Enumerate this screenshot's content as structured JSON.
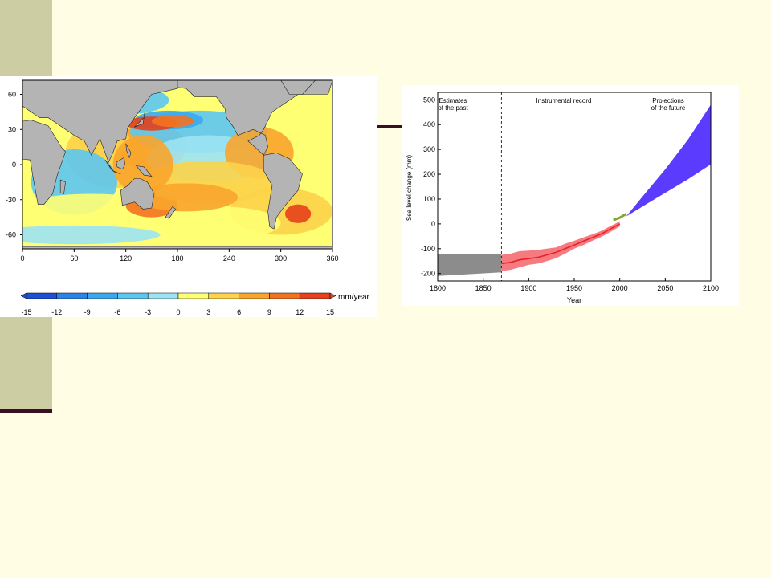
{
  "colors": {
    "background": "#fffde3",
    "deco_bar": "#cdcda4",
    "deco_line": "#3a0f24",
    "land": "#b4b4b4",
    "past_band": "#8c8c8c",
    "instrumental": "#e8202a",
    "instrumental_band": "#f4646a",
    "satellite": "#7fa832",
    "projection": "#5b3cff"
  },
  "chart_data": [
    {
      "type": "heatmap",
      "subtype": "map",
      "x_ticks": [
        "0",
        "60",
        "120",
        "180",
        "240",
        "300",
        "360"
      ],
      "y_ticks": [
        "60",
        "30",
        "0",
        "-30",
        "-60"
      ],
      "xlim": [
        0,
        360
      ],
      "ylim": [
        -72,
        72
      ],
      "colorbar": {
        "unit": "mm/year",
        "ticks": [
          "-15",
          "-12",
          "-9",
          "-6",
          "-3",
          "0",
          "3",
          "6",
          "9",
          "12",
          "15"
        ],
        "colors": [
          "#1f4fd6",
          "#2b82e8",
          "#3aa8ef",
          "#5cc6f2",
          "#9ce3f4",
          "#ffff73",
          "#fcd34a",
          "#f8a52c",
          "#f3731f",
          "#e6411c"
        ]
      }
    },
    {
      "type": "area",
      "xlabel": "Year",
      "ylabel": "Sea level change (mm)",
      "xlim": [
        1800,
        2100
      ],
      "ylim": [
        -230,
        530
      ],
      "x_ticks": [
        1800,
        1850,
        1900,
        1950,
        2000,
        2050,
        2100
      ],
      "y_ticks": [
        -200,
        -100,
        0,
        100,
        200,
        300,
        400,
        500
      ],
      "grid": false,
      "periods": [
        {
          "label_line1": "Estimates",
          "label_line2": "of the past"
        },
        {
          "label_line1": "Instrumental record",
          "label_line2": ""
        },
        {
          "label_line1": "Projections",
          "label_line2": "of the future"
        }
      ],
      "period_dividers": [
        1870,
        2007
      ],
      "series": [
        {
          "x": [
            1800,
            1870
          ],
          "lower": [
            -210,
            -195
          ],
          "upper": [
            -120,
            -120
          ]
        },
        {
          "x": [
            1870,
            1880,
            1890,
            1900,
            1910,
            1920,
            1930,
            1940,
            1950,
            1960,
            1970,
            1980,
            1990,
            2000
          ],
          "values": [
            -160,
            -155,
            -145,
            -140,
            -135,
            -125,
            -115,
            -100,
            -85,
            -70,
            -55,
            -40,
            -20,
            0
          ],
          "lower": [
            -190,
            -185,
            -175,
            -165,
            -160,
            -150,
            -138,
            -120,
            -100,
            -85,
            -68,
            -52,
            -32,
            -10
          ],
          "upper": [
            -125,
            -120,
            -110,
            -108,
            -105,
            -100,
            -95,
            -80,
            -68,
            -55,
            -42,
            -28,
            -8,
            10
          ]
        },
        {
          "x": [
            1993,
            2000,
            2007
          ],
          "values": [
            15,
            25,
            40
          ]
        },
        {
          "x": [
            2007,
            2025,
            2050,
            2075,
            2100
          ],
          "lower": [
            30,
            70,
            125,
            180,
            240
          ],
          "upper": [
            30,
            110,
            220,
            340,
            480
          ]
        }
      ]
    }
  ]
}
